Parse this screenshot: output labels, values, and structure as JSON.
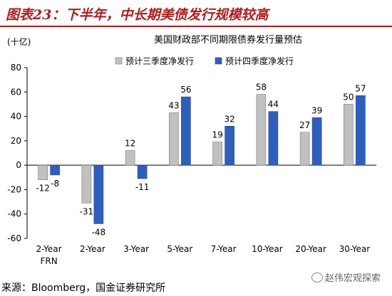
{
  "figure_title": "图表23：下半年，中长期美债发行规模较高",
  "source_note": "来源：Bloomberg，国金证券研究所",
  "watermark": "赵伟宏观探索",
  "colors": {
    "title": "#b31b1b",
    "series1": "#c0c0c0",
    "series2": "#2e5fbe"
  },
  "chart_data": {
    "type": "bar",
    "title": "美国财政部不同期限债券发行量预估",
    "unit_label": "(十亿)",
    "categories": [
      "2-Year FRN",
      "2-Year",
      "3-Year",
      "5-Year",
      "7-Year",
      "10-Year",
      "20-Year",
      "30-Year"
    ],
    "category_lines": [
      [
        "2-Year",
        "FRN"
      ],
      [
        "2-Year"
      ],
      [
        "3-Year"
      ],
      [
        "5-Year"
      ],
      [
        "7-Year"
      ],
      [
        "10-Year"
      ],
      [
        "20-Year"
      ],
      [
        "30-Year"
      ]
    ],
    "series": [
      {
        "name": "预计三季度净发行",
        "values": [
          -12,
          -31,
          12,
          43,
          19,
          58,
          27,
          50
        ]
      },
      {
        "name": "预计四季度净发行",
        "values": [
          -8,
          -48,
          -11,
          56,
          32,
          44,
          39,
          57
        ]
      }
    ],
    "ylim": [
      -60,
      80
    ],
    "yticks": [
      -60,
      -40,
      -20,
      0,
      20,
      40,
      60,
      80
    ],
    "legend_position": "top-right",
    "grid": false
  }
}
